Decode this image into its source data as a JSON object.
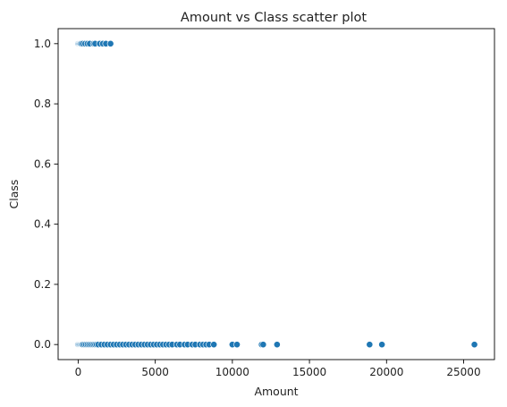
{
  "chart_data": {
    "type": "scatter",
    "title": "Amount vs Class scatter plot",
    "xlabel": "Amount",
    "ylabel": "Class",
    "xlim": [
      -1300,
      27000
    ],
    "ylim": [
      -0.05,
      1.05
    ],
    "x_ticks": [
      0,
      5000,
      10000,
      15000,
      20000,
      25000
    ],
    "y_ticks": [
      0.0,
      0.2,
      0.4,
      0.6,
      0.8,
      1.0
    ],
    "x_tick_labels": [
      "0",
      "5000",
      "10000",
      "15000",
      "20000",
      "25000"
    ],
    "y_tick_labels": [
      "0.0",
      "0.2",
      "0.4",
      "0.6",
      "0.8",
      "1.0"
    ],
    "grid": false,
    "marker_color": "#1f77b4",
    "marker_edge_color": "#ffffff",
    "series": [
      {
        "values": [
          [
            0,
            1
          ],
          [
            50,
            1
          ],
          [
            100,
            1
          ],
          [
            150,
            1
          ],
          [
            200,
            1
          ],
          [
            300,
            1
          ],
          [
            450,
            1
          ],
          [
            600,
            1
          ],
          [
            750,
            1
          ],
          [
            1000,
            1
          ],
          [
            1100,
            1
          ],
          [
            1400,
            1
          ],
          [
            1600,
            1
          ],
          [
            1800,
            1
          ],
          [
            2100,
            1
          ],
          [
            0,
            0
          ],
          [
            50,
            0
          ],
          [
            100,
            0
          ],
          [
            150,
            0
          ],
          [
            200,
            0
          ],
          [
            250,
            0
          ],
          [
            300,
            0
          ],
          [
            400,
            0
          ],
          [
            500,
            0
          ],
          [
            600,
            0
          ],
          [
            700,
            0
          ],
          [
            800,
            0
          ],
          [
            900,
            0
          ],
          [
            1000,
            0
          ],
          [
            1100,
            0
          ],
          [
            1200,
            0
          ],
          [
            1300,
            0
          ],
          [
            1500,
            0
          ],
          [
            1700,
            0
          ],
          [
            1900,
            0
          ],
          [
            2100,
            0
          ],
          [
            2300,
            0
          ],
          [
            2500,
            0
          ],
          [
            2700,
            0
          ],
          [
            2900,
            0
          ],
          [
            3100,
            0
          ],
          [
            3300,
            0
          ],
          [
            3500,
            0
          ],
          [
            3700,
            0
          ],
          [
            3900,
            0
          ],
          [
            4100,
            0
          ],
          [
            4300,
            0
          ],
          [
            4500,
            0
          ],
          [
            4700,
            0
          ],
          [
            4900,
            0
          ],
          [
            5100,
            0
          ],
          [
            5300,
            0
          ],
          [
            5500,
            0
          ],
          [
            5700,
            0
          ],
          [
            5900,
            0
          ],
          [
            6100,
            0
          ],
          [
            6400,
            0
          ],
          [
            6600,
            0
          ],
          [
            6900,
            0
          ],
          [
            7100,
            0
          ],
          [
            7400,
            0
          ],
          [
            7600,
            0
          ],
          [
            7900,
            0
          ],
          [
            8100,
            0
          ],
          [
            8300,
            0
          ],
          [
            8500,
            0
          ],
          [
            8800,
            0
          ],
          [
            10000,
            0
          ],
          [
            10300,
            0
          ],
          [
            11900,
            0
          ],
          [
            12000,
            0
          ],
          [
            12900,
            0
          ],
          [
            18900,
            0
          ],
          [
            19700,
            0
          ],
          [
            25700,
            0
          ]
        ]
      }
    ]
  }
}
